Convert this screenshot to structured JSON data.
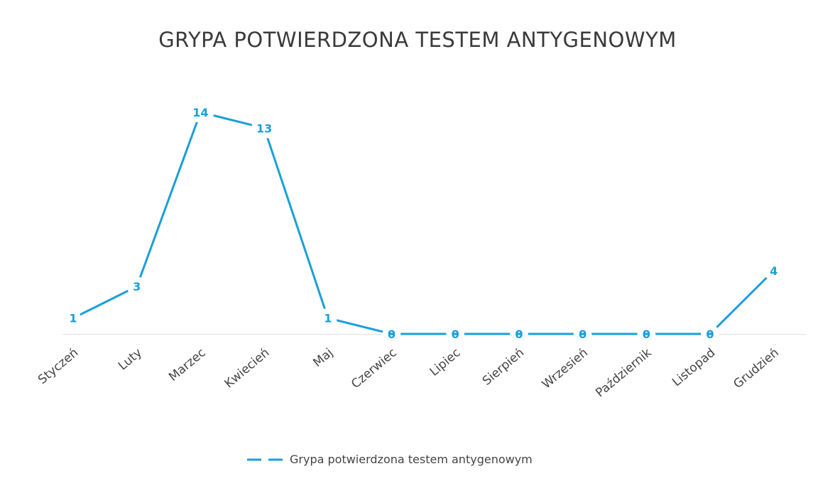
{
  "chart_data": {
    "type": "line",
    "title": "GRYPA POTWIERDZONA TESTEM ANTYGENOWYM",
    "categories": [
      "Styczeń",
      "Luty",
      "Marzec",
      "Kwiecień",
      "Maj",
      "Czerwiec",
      "Lipiec",
      "Sierpień",
      "Wrzesień",
      "Październik",
      "Listopad",
      "Grudzień"
    ],
    "series": [
      {
        "name": "Grypa potwierdzona testem antygenowym",
        "color": "#1a9fd9",
        "values": [
          1,
          3,
          14,
          13,
          1,
          0,
          0,
          0,
          0,
          0,
          0,
          4
        ]
      }
    ],
    "legend": "bottom"
  }
}
